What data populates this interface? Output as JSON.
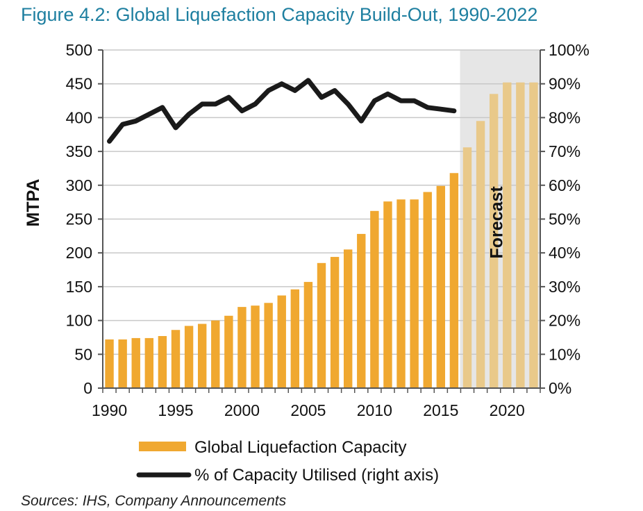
{
  "title": "Figure 4.2: Global Liquefaction Capacity Build-Out, 1990-2022",
  "source": "Sources: IHS, Company Announcements",
  "colors": {
    "capacity_bar": "#f0a830",
    "forecast_bar": "#e9c98a",
    "forecast_band": "#e6e6e6",
    "utilisation_line": "#1a1a1a",
    "title": "#1e7fa0",
    "grid": "#c8c8c8"
  },
  "chart_data": {
    "type": "bar",
    "ylabel": "MTPA",
    "ylim": [
      0,
      500
    ],
    "y2lim": [
      0,
      100
    ],
    "y_ticks": [
      "0",
      "50",
      "100",
      "150",
      "200",
      "250",
      "300",
      "350",
      "400",
      "450",
      "500"
    ],
    "y2_ticks": [
      "0%",
      "10%",
      "20%",
      "30%",
      "40%",
      "50%",
      "60%",
      "70%",
      "80%",
      "90%",
      "100%"
    ],
    "x_ticks": [
      "1990",
      "1995",
      "2000",
      "2005",
      "2010",
      "2015",
      "2020"
    ],
    "grid": true,
    "legend_position": "bottom",
    "forecast_label": "Forecast",
    "forecast_start_year": 2017,
    "years": [
      1990,
      1991,
      1992,
      1993,
      1994,
      1995,
      1996,
      1997,
      1998,
      1999,
      2000,
      2001,
      2002,
      2003,
      2004,
      2005,
      2006,
      2007,
      2008,
      2009,
      2010,
      2011,
      2012,
      2013,
      2014,
      2015,
      2016,
      2017,
      2018,
      2019,
      2020,
      2021,
      2022
    ],
    "series": [
      {
        "name": "Global Liquefaction Capacity",
        "kind": "bar",
        "axis": "left",
        "values": [
          72,
          72,
          74,
          74,
          77,
          86,
          92,
          95,
          100,
          107,
          120,
          122,
          126,
          137,
          146,
          157,
          185,
          194,
          205,
          228,
          262,
          276,
          279,
          279,
          290,
          299,
          318,
          356,
          395,
          435,
          452,
          452,
          452
        ]
      },
      {
        "name": "% of Capacity Utilised (right axis)",
        "kind": "line",
        "axis": "right",
        "values": [
          73,
          78,
          79,
          81,
          83,
          77,
          81,
          84,
          84,
          86,
          82,
          84,
          88,
          90,
          88,
          91,
          86,
          88,
          84,
          79,
          85,
          87,
          85,
          85,
          83,
          82.5,
          82
        ]
      }
    ]
  }
}
